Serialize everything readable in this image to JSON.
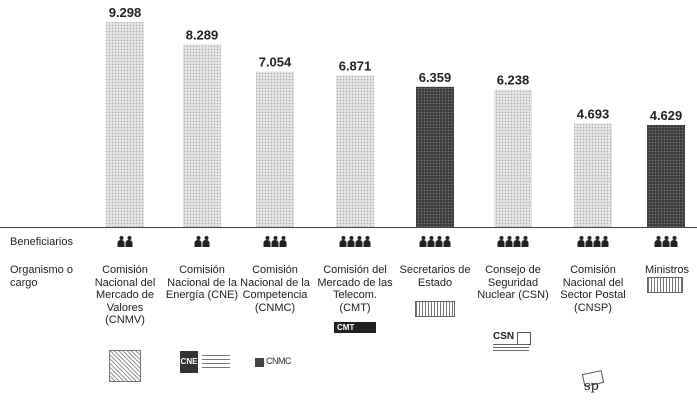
{
  "chart_data": {
    "type": "bar",
    "categories": [
      "Comisión Nacional del Mercado de Valores (CNMV)",
      "Comisión Nacional de la Energía (CNE)",
      "Comisión Nacional de la Competencia (CNMC)",
      "Comisión del Mercado de las Telecom. (CMT)",
      "Secretarios de Estado",
      "Consejo de Seguridad Nuclear (CSN)",
      "Comisión Nacional del Sector Postal (CNSP)",
      "Ministros"
    ],
    "values": [
      9298,
      8289,
      7054,
      6871,
      6359,
      6238,
      4693,
      4629
    ],
    "value_labels": [
      "9.298",
      "8.289",
      "7.054",
      "6.871",
      "6.359",
      "6.238",
      "4.693",
      "4.629"
    ],
    "beneficiaries": [
      2,
      2,
      3,
      4,
      4,
      4,
      4,
      3
    ],
    "highlighted": [
      false,
      false,
      false,
      false,
      true,
      false,
      false,
      true
    ],
    "ylim": [
      0,
      9300
    ],
    "grid": false,
    "row_labels": {
      "beneficiaries": "Beneficiarios",
      "organism": "Organismo o cargo"
    },
    "org_names": [
      "Comisión Nacional del Mercado de Valores (CNMV)",
      "Comisión Nacional de la Energía (CNE)",
      "Comisión Nacional de la Competencia (CNMC)",
      "Comisión del Mercado de las Telecom. (CMT)",
      "Secretarios de Estado",
      "Consejo de Seguridad Nuclear (CSN)",
      "Comisión Nacional del Sector Postal (CNSP)",
      "Ministros"
    ],
    "logos": {
      "cne": "CNE",
      "cnmc": "CNMC",
      "cmt": "CMT",
      "csn": "CSN",
      "cnsp": "sp"
    },
    "colors": {
      "bar_light": "#d9d9d9",
      "bar_light_dots": "#a9a9a9",
      "bar_dark": "#3d3d3d",
      "bar_dark_dots": "#7a7a7a",
      "baseline": "#444444"
    }
  }
}
